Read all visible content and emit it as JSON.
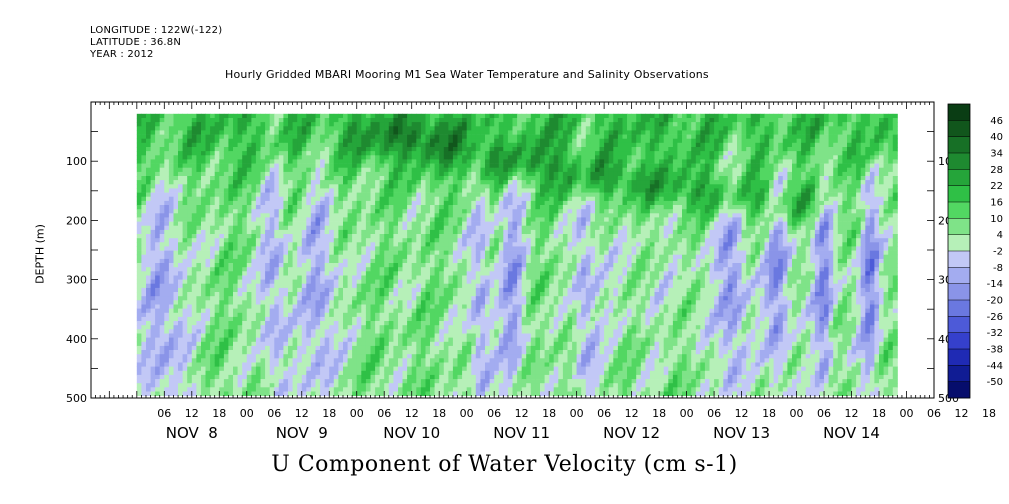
{
  "header": {
    "longitude": "LONGITUDE : 122W(-122)",
    "latitude": "LATITUDE : 36.8N",
    "year": "YEAR : 2012"
  },
  "title": "Hourly Gridded MBARI Mooring M1 Sea Water Temperature and Salinity Observations",
  "bottom_title": "U Component of Water Velocity (cm s-1)",
  "chart_data": {
    "type": "heatmap",
    "ylabel": "DEPTH (m)",
    "ylim": [
      0,
      500
    ],
    "y_reversed": true,
    "y_ticks": [
      100,
      200,
      300,
      400,
      500
    ],
    "data_depth_range": [
      20,
      490
    ],
    "x_range_hours": [
      -10,
      174
    ],
    "x_data_start_hours": 0,
    "x_data_end_hours": 166,
    "x_hour_labels": [
      "06",
      "12",
      "18",
      "00",
      "06",
      "12",
      "18",
      "00",
      "06",
      "12",
      "18",
      "00",
      "06",
      "12",
      "18",
      "00",
      "06",
      "12",
      "18",
      "00",
      "06",
      "12",
      "18",
      "00",
      "06",
      "12",
      "18",
      "00",
      "06",
      "12",
      "18",
      "00"
    ],
    "x_day_labels": [
      "NOV  8",
      "NOV  9",
      "NOV 10",
      "NOV 11",
      "NOV 12",
      "NOV 13",
      "NOV 14"
    ],
    "colorbar": {
      "levels": [
        46,
        40,
        34,
        28,
        22,
        16,
        10,
        4,
        -2,
        -8,
        -14,
        -20,
        -26,
        -32,
        -38,
        -44,
        -50
      ],
      "colors": [
        "#0a3d14",
        "#11561c",
        "#177026",
        "#1e8a30",
        "#25a53a",
        "#2fc046",
        "#52d762",
        "#7fe388",
        "#b6f0b8",
        "#c2c8f6",
        "#a3acf0",
        "#8a94e8",
        "#6a78e0",
        "#4d5ad8",
        "#3540cc",
        "#1f2ab4",
        "#101c94",
        "#060d6c"
      ],
      "colors_order": "top-to-bottom",
      "data_range": [
        -50,
        50
      ]
    },
    "field_description": "U-velocity values mostly between -20 and 40 cm/s; greens dominate upper 200 m, lavender (negative) columns near Nov 8 06, Nov 9 06-18, Nov 11 00-12, Nov 12 00-06, Nov 13 06-18, Nov 14 06"
  }
}
